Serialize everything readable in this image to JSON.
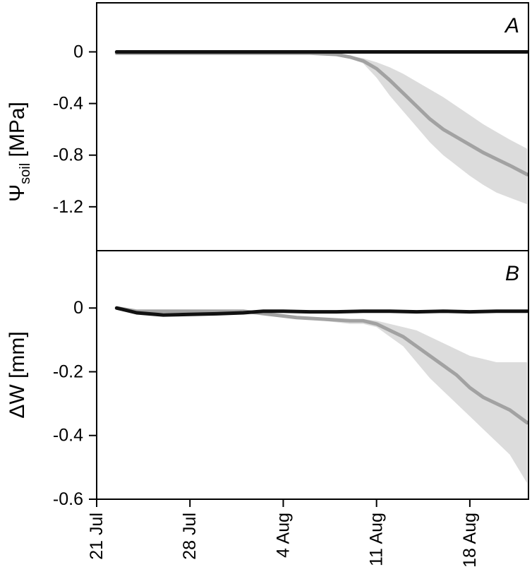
{
  "chart_data": [
    {
      "panel": "A",
      "type": "line",
      "ylabel": {
        "main": "Ψ",
        "sub": "soil",
        "unit": " [MPa]"
      },
      "yticks": [
        "0",
        "-0.4",
        "-0.8",
        "-1.2"
      ],
      "ytick_values": [
        0,
        -0.4,
        -0.8,
        -1.2
      ],
      "ylim": [
        -1.54,
        0.38
      ],
      "xlim": [
        0,
        32.4
      ],
      "x_axis": "days since 21 Jul",
      "series": [
        {
          "style": "black",
          "x": [
            1.5,
            5,
            10,
            15,
            20,
            25,
            30,
            32.3
          ],
          "y": [
            0,
            0,
            0,
            0,
            0,
            0,
            0,
            0
          ]
        },
        {
          "style": "grey-mean",
          "x": [
            1.5,
            5,
            10,
            14,
            16,
            18,
            19,
            20,
            21,
            22,
            23,
            24,
            25,
            26,
            27,
            28,
            29,
            30,
            31,
            32.3
          ],
          "y": [
            -0.01,
            -0.01,
            -0.01,
            -0.01,
            -0.01,
            -0.02,
            -0.04,
            -0.07,
            -0.13,
            -0.22,
            -0.32,
            -0.42,
            -0.52,
            -0.6,
            -0.66,
            -0.72,
            -0.78,
            -0.83,
            -0.88,
            -0.95
          ],
          "band_upper": [
            -0.01,
            -0.01,
            -0.01,
            -0.01,
            -0.01,
            -0.02,
            -0.03,
            -0.05,
            -0.08,
            -0.12,
            -0.17,
            -0.23,
            -0.29,
            -0.35,
            -0.42,
            -0.49,
            -0.56,
            -0.62,
            -0.68,
            -0.75
          ],
          "band_lower": [
            -0.01,
            -0.01,
            -0.01,
            -0.01,
            -0.01,
            -0.02,
            -0.05,
            -0.09,
            -0.2,
            -0.34,
            -0.46,
            -0.58,
            -0.7,
            -0.8,
            -0.88,
            -0.96,
            -1.03,
            -1.09,
            -1.13,
            -1.18
          ]
        }
      ]
    },
    {
      "panel": "B",
      "type": "line",
      "ylabel": {
        "main": "ΔW",
        "sub": "",
        "unit": " [mm]"
      },
      "yticks": [
        "0",
        "-0.2",
        "-0.4",
        "-0.6"
      ],
      "ytick_values": [
        0,
        -0.2,
        -0.4,
        -0.6
      ],
      "ylim": [
        -0.6,
        0.18
      ],
      "xlim": [
        0,
        32.4
      ],
      "xticks": [
        "21 Jul",
        "28 Jul",
        "4 Aug",
        "11 Aug",
        "18 Aug"
      ],
      "xtick_values": [
        0,
        7,
        14,
        21,
        28
      ],
      "series": [
        {
          "style": "black",
          "x": [
            1.5,
            3,
            5,
            7,
            9,
            11,
            12.5,
            14,
            16,
            18,
            20,
            22,
            24,
            26,
            28,
            30,
            32.3
          ],
          "y": [
            0,
            -0.015,
            -0.022,
            -0.02,
            -0.018,
            -0.015,
            -0.01,
            -0.01,
            -0.012,
            -0.012,
            -0.01,
            -0.01,
            -0.012,
            -0.01,
            -0.012,
            -0.01,
            -0.01
          ]
        },
        {
          "style": "grey-mean",
          "x": [
            1.5,
            3,
            5,
            7,
            9,
            11,
            13,
            15,
            17,
            19,
            20,
            21,
            22,
            23,
            24,
            25,
            26,
            27,
            28,
            29,
            30,
            31,
            32.3
          ],
          "y": [
            0,
            -0.01,
            -0.01,
            -0.01,
            -0.01,
            -0.01,
            -0.02,
            -0.03,
            -0.035,
            -0.04,
            -0.04,
            -0.05,
            -0.07,
            -0.09,
            -0.12,
            -0.15,
            -0.18,
            -0.21,
            -0.25,
            -0.28,
            -0.3,
            -0.32,
            -0.36
          ],
          "band_upper": [
            0,
            -0.01,
            -0.01,
            -0.01,
            -0.01,
            -0.01,
            -0.02,
            -0.03,
            -0.03,
            -0.035,
            -0.035,
            -0.04,
            -0.05,
            -0.06,
            -0.07,
            -0.09,
            -0.11,
            -0.13,
            -0.15,
            -0.16,
            -0.17,
            -0.17,
            -0.17
          ],
          "band_lower": [
            0,
            -0.01,
            -0.01,
            -0.01,
            -0.01,
            -0.01,
            -0.02,
            -0.03,
            -0.04,
            -0.05,
            -0.05,
            -0.06,
            -0.09,
            -0.12,
            -0.17,
            -0.22,
            -0.26,
            -0.3,
            -0.34,
            -0.38,
            -0.42,
            -0.46,
            -0.55
          ]
        }
      ]
    }
  ],
  "colors": {
    "black_series": "#111111",
    "grey_series": "#a2a2a2",
    "grey_band": "#dcdcdc",
    "frame": "#000000"
  }
}
